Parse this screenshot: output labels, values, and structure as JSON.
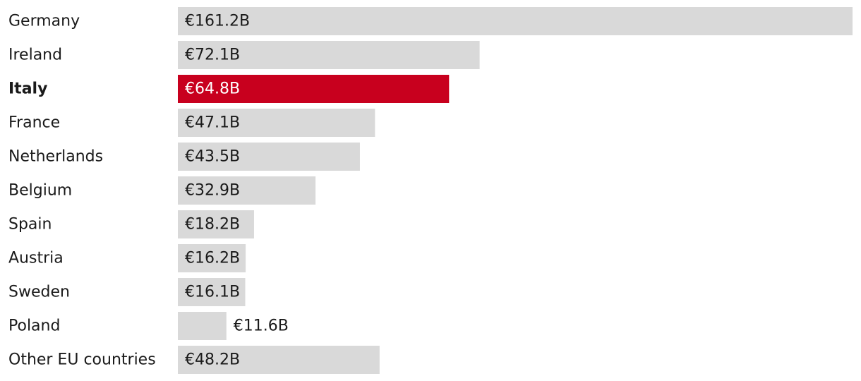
{
  "chart_data": {
    "type": "bar",
    "orientation": "horizontal",
    "categories": [
      "Germany",
      "Ireland",
      "Italy",
      "France",
      "Netherlands",
      "Belgium",
      "Spain",
      "Austria",
      "Sweden",
      "Poland",
      "Other EU countries"
    ],
    "values": [
      161.2,
      72.1,
      64.8,
      47.1,
      43.5,
      32.9,
      18.2,
      16.2,
      16.1,
      11.6,
      48.2
    ],
    "value_labels": [
      "€161.2B",
      "€72.1B",
      "€64.8B",
      "€47.1B",
      "€43.5B",
      "€32.9B",
      "€18.2B",
      "€16.2B",
      "€16.1B",
      "€11.6B",
      "€48.2B"
    ],
    "highlight_category": "Italy",
    "xlim": [
      0,
      161.2
    ],
    "grid": false,
    "legend": "none"
  },
  "colors": {
    "bar": "#d9d9d9",
    "highlight": "#c8001e",
    "text": "#1a1a1a",
    "highlight_text": "#ffffff"
  }
}
